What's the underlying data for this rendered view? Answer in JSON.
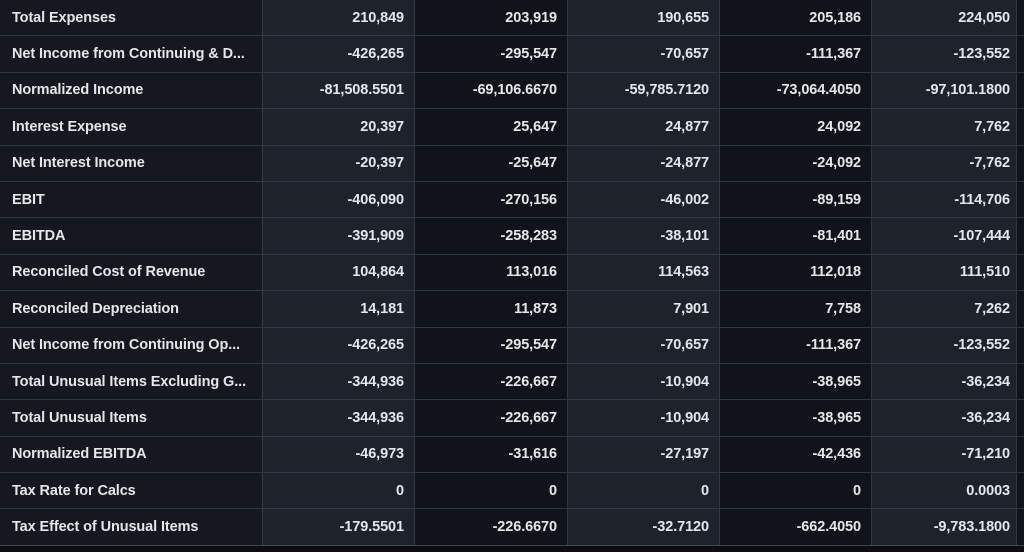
{
  "table": {
    "rows": [
      {
        "label": "Total Expenses",
        "values": [
          "210,849",
          "203,919",
          "190,655",
          "205,186",
          "224,050"
        ]
      },
      {
        "label": "Net Income from Continuing & D...",
        "values": [
          "-426,265",
          "-295,547",
          "-70,657",
          "-111,367",
          "-123,552"
        ]
      },
      {
        "label": "Normalized Income",
        "values": [
          "-81,508.5501",
          "-69,106.6670",
          "-59,785.7120",
          "-73,064.4050",
          "-97,101.1800"
        ]
      },
      {
        "label": "Interest Expense",
        "values": [
          "20,397",
          "25,647",
          "24,877",
          "24,092",
          "7,762"
        ]
      },
      {
        "label": "Net Interest Income",
        "values": [
          "-20,397",
          "-25,647",
          "-24,877",
          "-24,092",
          "-7,762"
        ]
      },
      {
        "label": "EBIT",
        "values": [
          "-406,090",
          "-270,156",
          "-46,002",
          "-89,159",
          "-114,706"
        ]
      },
      {
        "label": "EBITDA",
        "values": [
          "-391,909",
          "-258,283",
          "-38,101",
          "-81,401",
          "-107,444"
        ]
      },
      {
        "label": "Reconciled Cost of Revenue",
        "values": [
          "104,864",
          "113,016",
          "114,563",
          "112,018",
          "111,510"
        ]
      },
      {
        "label": "Reconciled Depreciation",
        "values": [
          "14,181",
          "11,873",
          "7,901",
          "7,758",
          "7,262"
        ]
      },
      {
        "label": "Net Income from Continuing Op...",
        "values": [
          "-426,265",
          "-295,547",
          "-70,657",
          "-111,367",
          "-123,552"
        ]
      },
      {
        "label": "Total Unusual Items Excluding G...",
        "values": [
          "-344,936",
          "-226,667",
          "-10,904",
          "-38,965",
          "-36,234"
        ]
      },
      {
        "label": "Total Unusual Items",
        "values": [
          "-344,936",
          "-226,667",
          "-10,904",
          "-38,965",
          "-36,234"
        ]
      },
      {
        "label": "Normalized EBITDA",
        "values": [
          "-46,973",
          "-31,616",
          "-27,197",
          "-42,436",
          "-71,210"
        ]
      },
      {
        "label": "Tax Rate for Calcs",
        "values": [
          "0",
          "0",
          "0",
          "0",
          "0.0003"
        ]
      },
      {
        "label": "Tax Effect of Unusual Items",
        "values": [
          "-179.5501",
          "-226.6670",
          "-32.7120",
          "-662.4050",
          "-9,783.1800"
        ]
      }
    ]
  },
  "colors": {
    "background": "#0b0d11",
    "label_column_bg": "#15181f",
    "value_column_light_bg": "#1e222b",
    "value_column_dark_bg": "#10141a",
    "grid_line": "#313845",
    "text": "#e4e7eb"
  }
}
